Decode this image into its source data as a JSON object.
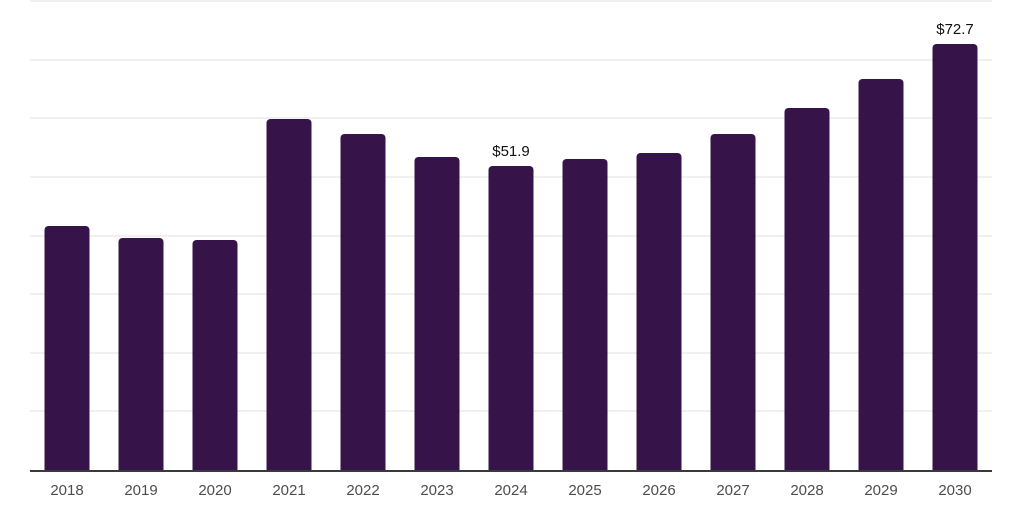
{
  "chart_data": {
    "type": "bar",
    "title": "",
    "xlabel": "",
    "ylabel": "",
    "categories": [
      "2018",
      "2019",
      "2020",
      "2021",
      "2022",
      "2023",
      "2024",
      "2025",
      "2026",
      "2027",
      "2028",
      "2029",
      "2030"
    ],
    "values": [
      41.7,
      39.5,
      39.2,
      59.9,
      57.3,
      53.4,
      51.9,
      53.1,
      54.1,
      57.3,
      61.8,
      66.7,
      72.7
    ],
    "value_labels": [
      {
        "category": "2024",
        "text": "$51.9"
      },
      {
        "category": "2030",
        "text": "$72.7"
      }
    ],
    "ylim": [
      0,
      80
    ],
    "grid_step": 10,
    "grid": true,
    "legend": false,
    "y_tick_labels_visible": false,
    "colors": {
      "bar": "#361449",
      "grid_line": "#f0f0f0",
      "axis_line": "#3a3a3a",
      "tick_label": "#4d4d4d",
      "value_label": "#111111",
      "background": "#ffffff"
    }
  }
}
